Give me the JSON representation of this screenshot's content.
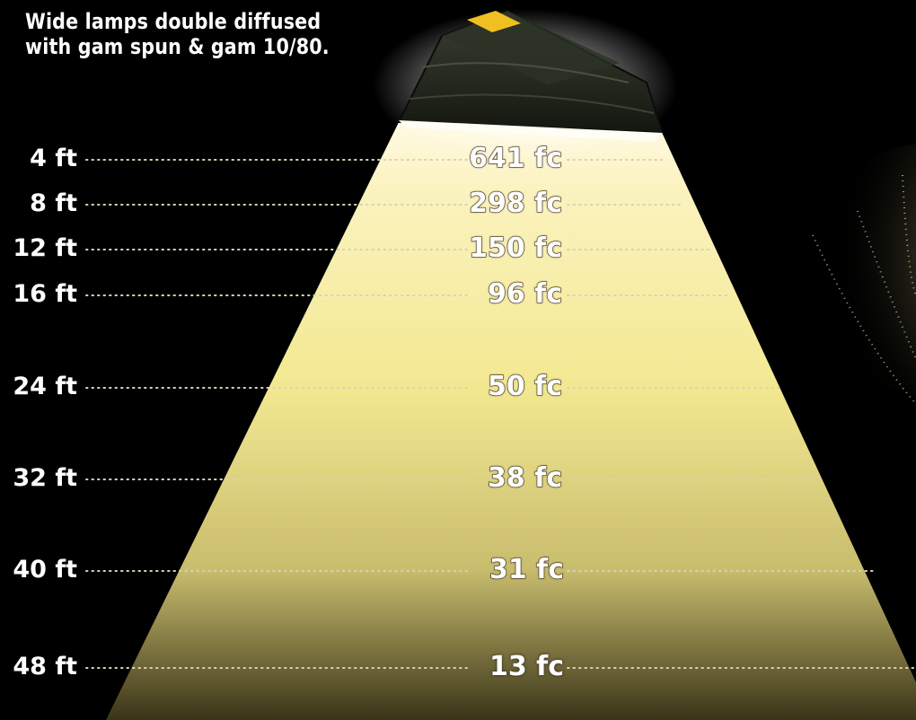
{
  "title_lines": [
    "Wide lamps double diffused",
    "with gam spun & gam 10/80."
  ],
  "colors": {
    "background": "#000000",
    "beam_top": "#fffbe8",
    "beam_mid": "#f5ea94",
    "beam_bottom": "#3a3418",
    "fixture_body": "#24281f",
    "fixture_accent": "#f0c020"
  },
  "icons": {
    "fixture": "light-fixture-icon"
  },
  "rows": [
    {
      "distance": "4 ft",
      "illuminance": "641 fc"
    },
    {
      "distance": "8 ft",
      "illuminance": "298 fc"
    },
    {
      "distance": "12 ft",
      "illuminance": "150 fc"
    },
    {
      "distance": "16 ft",
      "illuminance": "96 fc"
    },
    {
      "distance": "24 ft",
      "illuminance": "50 fc"
    },
    {
      "distance": "32 ft",
      "illuminance": "38 fc"
    },
    {
      "distance": "40 ft",
      "illuminance": "31 fc"
    },
    {
      "distance": "48 ft",
      "illuminance": "13 fc"
    }
  ]
}
